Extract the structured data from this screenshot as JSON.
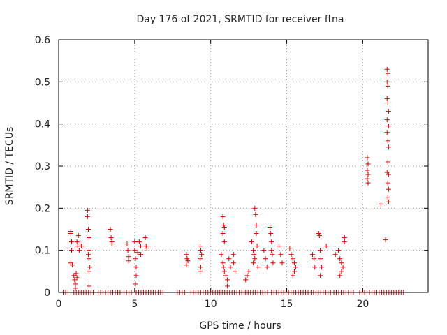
{
  "chart_data": {
    "type": "scatter",
    "title": "Day 176 of 2021, SRMTID for receiver ftna",
    "xlabel": "GPS time / hours",
    "ylabel": "SRMTID / TECUs",
    "xlim": [
      0,
      24.3
    ],
    "ylim": [
      0,
      0.6
    ],
    "xticks": [
      0,
      5,
      10,
      15,
      20
    ],
    "yticks": [
      0,
      0.1,
      0.2,
      0.3,
      0.4,
      0.5,
      0.6
    ],
    "xtick_labels": [
      "0",
      "5",
      "10",
      "15",
      "20"
    ],
    "ytick_labels": [
      "0",
      "0.1",
      "0.2",
      "0.3",
      "0.4",
      "0.5",
      "0.6"
    ],
    "grid": true,
    "marker": "+",
    "marker_color": "#dd0000",
    "series": [
      {
        "name": "SRMTID",
        "points": [
          [
            0.8,
            0.145
          ],
          [
            0.8,
            0.14
          ],
          [
            0.85,
            0.12
          ],
          [
            0.85,
            0.1
          ],
          [
            0.8,
            0.07
          ],
          [
            0.9,
            0.065
          ],
          [
            1.0,
            0.04
          ],
          [
            1.05,
            0.03
          ],
          [
            1.1,
            0.02
          ],
          [
            1.1,
            0.01
          ],
          [
            1.15,
            0.045
          ],
          [
            1.2,
            0.035
          ],
          [
            1.2,
            0.12
          ],
          [
            1.25,
            0.11
          ],
          [
            1.3,
            0.135
          ],
          [
            1.35,
            0.1
          ],
          [
            1.4,
            0.115
          ],
          [
            1.5,
            0.11
          ],
          [
            1.9,
            0.195
          ],
          [
            1.9,
            0.18
          ],
          [
            1.95,
            0.15
          ],
          [
            2.0,
            0.13
          ],
          [
            2.0,
            0.1
          ],
          [
            1.95,
            0.09
          ],
          [
            2.0,
            0.08
          ],
          [
            2.05,
            0.06
          ],
          [
            2.0,
            0.05
          ],
          [
            2.0,
            0.015
          ],
          [
            3.4,
            0.15
          ],
          [
            3.45,
            0.13
          ],
          [
            3.5,
            0.12
          ],
          [
            3.5,
            0.115
          ],
          [
            4.5,
            0.115
          ],
          [
            4.55,
            0.1
          ],
          [
            4.6,
            0.085
          ],
          [
            4.6,
            0.075
          ],
          [
            5.0,
            0.12
          ],
          [
            5.0,
            0.1
          ],
          [
            5.05,
            0.08
          ],
          [
            5.1,
            0.06
          ],
          [
            5.1,
            0.04
          ],
          [
            5.05,
            0.02
          ],
          [
            5.2,
            0.095
          ],
          [
            5.3,
            0.12
          ],
          [
            5.4,
            0.11
          ],
          [
            5.4,
            0.09
          ],
          [
            5.7,
            0.13
          ],
          [
            5.75,
            0.11
          ],
          [
            5.8,
            0.105
          ],
          [
            8.4,
            0.09
          ],
          [
            8.45,
            0.08
          ],
          [
            8.5,
            0.075
          ],
          [
            8.4,
            0.065
          ],
          [
            9.3,
            0.11
          ],
          [
            9.35,
            0.1
          ],
          [
            9.4,
            0.09
          ],
          [
            9.3,
            0.08
          ],
          [
            9.35,
            0.06
          ],
          [
            9.3,
            0.05
          ],
          [
            10.8,
            0.18
          ],
          [
            10.85,
            0.16
          ],
          [
            10.9,
            0.155
          ],
          [
            10.8,
            0.14
          ],
          [
            10.9,
            0.12
          ],
          [
            10.7,
            0.09
          ],
          [
            10.8,
            0.07
          ],
          [
            10.85,
            0.06
          ],
          [
            10.9,
            0.05
          ],
          [
            11.0,
            0.04
          ],
          [
            11.1,
            0.03
          ],
          [
            11.1,
            0.015
          ],
          [
            11.2,
            0.08
          ],
          [
            11.3,
            0.06
          ],
          [
            11.5,
            0.09
          ],
          [
            11.5,
            0.07
          ],
          [
            11.6,
            0.05
          ],
          [
            12.3,
            0.03
          ],
          [
            12.4,
            0.04
          ],
          [
            12.5,
            0.05
          ],
          [
            12.7,
            0.12
          ],
          [
            12.8,
            0.1
          ],
          [
            12.85,
            0.09
          ],
          [
            12.9,
            0.08
          ],
          [
            12.8,
            0.07
          ],
          [
            12.9,
            0.2
          ],
          [
            12.95,
            0.185
          ],
          [
            13.0,
            0.16
          ],
          [
            13.0,
            0.14
          ],
          [
            13.05,
            0.11
          ],
          [
            13.1,
            0.06
          ],
          [
            13.5,
            0.1
          ],
          [
            13.6,
            0.08
          ],
          [
            13.7,
            0.06
          ],
          [
            13.9,
            0.155
          ],
          [
            13.95,
            0.14
          ],
          [
            14.0,
            0.12
          ],
          [
            14.0,
            0.1
          ],
          [
            14.05,
            0.09
          ],
          [
            14.1,
            0.07
          ],
          [
            14.5,
            0.11
          ],
          [
            14.6,
            0.09
          ],
          [
            14.7,
            0.07
          ],
          [
            15.2,
            0.105
          ],
          [
            15.3,
            0.09
          ],
          [
            15.4,
            0.08
          ],
          [
            15.5,
            0.07
          ],
          [
            15.6,
            0.06
          ],
          [
            15.5,
            0.05
          ],
          [
            15.4,
            0.04
          ],
          [
            16.7,
            0.09
          ],
          [
            16.8,
            0.08
          ],
          [
            16.85,
            0.06
          ],
          [
            17.1,
            0.14
          ],
          [
            17.15,
            0.135
          ],
          [
            17.2,
            0.1
          ],
          [
            17.25,
            0.08
          ],
          [
            17.3,
            0.06
          ],
          [
            17.2,
            0.04
          ],
          [
            17.6,
            0.11
          ],
          [
            18.2,
            0.09
          ],
          [
            18.4,
            0.1
          ],
          [
            18.5,
            0.08
          ],
          [
            18.6,
            0.07
          ],
          [
            18.7,
            0.06
          ],
          [
            18.8,
            0.13
          ],
          [
            18.8,
            0.12
          ],
          [
            18.6,
            0.05
          ],
          [
            18.5,
            0.04
          ],
          [
            20.3,
            0.32
          ],
          [
            20.35,
            0.305
          ],
          [
            20.3,
            0.29
          ],
          [
            20.35,
            0.28
          ],
          [
            20.3,
            0.27
          ],
          [
            20.35,
            0.26
          ],
          [
            21.2,
            0.21
          ],
          [
            21.5,
            0.125
          ],
          [
            21.6,
            0.53
          ],
          [
            21.65,
            0.52
          ],
          [
            21.6,
            0.5
          ],
          [
            21.65,
            0.49
          ],
          [
            21.6,
            0.46
          ],
          [
            21.65,
            0.45
          ],
          [
            21.7,
            0.43
          ],
          [
            21.6,
            0.41
          ],
          [
            21.7,
            0.395
          ],
          [
            21.6,
            0.38
          ],
          [
            21.65,
            0.36
          ],
          [
            21.7,
            0.345
          ],
          [
            21.65,
            0.31
          ],
          [
            21.6,
            0.285
          ],
          [
            21.7,
            0.28
          ],
          [
            21.65,
            0.26
          ],
          [
            21.7,
            0.245
          ],
          [
            21.65,
            0.225
          ],
          [
            21.7,
            0.215
          ]
        ],
        "zero_segments": [
          [
            0.3,
            0.7
          ],
          [
            1.0,
            2.3
          ],
          [
            2.6,
            4.1
          ],
          [
            4.3,
            4.9
          ],
          [
            5.1,
            6.9
          ],
          [
            7.8,
            8.3
          ],
          [
            8.7,
            10.5
          ],
          [
            10.6,
            12.2
          ],
          [
            12.3,
            13.8
          ],
          [
            14.0,
            16.5
          ],
          [
            16.6,
            18.0
          ],
          [
            18.1,
            19.4
          ],
          [
            19.8,
            22.8
          ]
        ]
      }
    ]
  }
}
